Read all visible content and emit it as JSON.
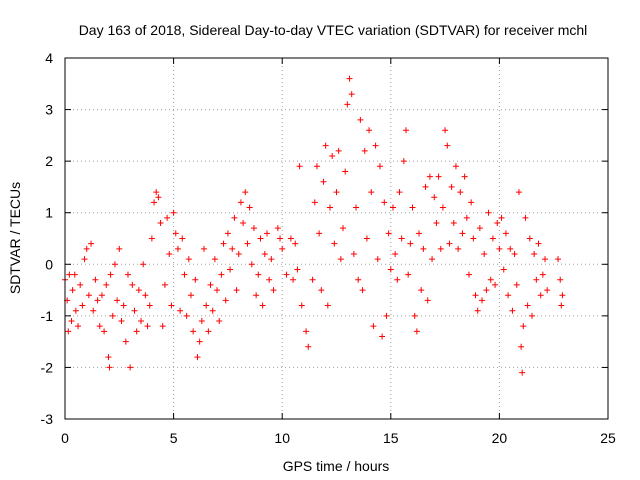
{
  "chart_data": {
    "type": "scatter",
    "title": "Day 163 of 2018, Sidereal Day-to-day VTEC variation (SDTVAR) for receiver mchl",
    "xlabel": "GPS time / hours",
    "ylabel": "SDTVAR / TECUs",
    "xlim": [
      0,
      25
    ],
    "ylim": [
      -3,
      4
    ],
    "xticks": [
      0,
      5,
      10,
      15,
      20,
      25
    ],
    "yticks": [
      -3,
      -2,
      -1,
      0,
      1,
      2,
      3,
      4
    ],
    "xtick_labels": [
      "0",
      "5",
      "10",
      "15",
      "20",
      "25"
    ],
    "ytick_labels": [
      "-3",
      "-2",
      "-1",
      "0",
      "1",
      "2",
      "3",
      "4"
    ],
    "grid": true,
    "marker": "+",
    "color": "#ff0000",
    "series": [
      {
        "name": "SDTVAR",
        "points": [
          [
            0.0,
            -0.3
          ],
          [
            0.1,
            -0.7
          ],
          [
            0.15,
            -1.3
          ],
          [
            0.2,
            -0.2
          ],
          [
            0.3,
            -1.1
          ],
          [
            0.35,
            -0.5
          ],
          [
            0.45,
            -0.2
          ],
          [
            0.5,
            -0.9
          ],
          [
            0.6,
            -1.2
          ],
          [
            0.7,
            -0.4
          ],
          [
            0.8,
            -0.8
          ],
          [
            0.9,
            0.1
          ],
          [
            1.0,
            0.3
          ],
          [
            1.1,
            -0.6
          ],
          [
            1.2,
            0.4
          ],
          [
            1.3,
            -0.9
          ],
          [
            1.4,
            -0.3
          ],
          [
            1.5,
            -0.7
          ],
          [
            1.6,
            -1.2
          ],
          [
            1.7,
            -0.6
          ],
          [
            1.8,
            -1.3
          ],
          [
            1.9,
            -0.4
          ],
          [
            2.0,
            -1.8
          ],
          [
            2.05,
            -2.0
          ],
          [
            2.1,
            -0.2
          ],
          [
            2.2,
            -1.0
          ],
          [
            2.3,
            0.0
          ],
          [
            2.4,
            -0.7
          ],
          [
            2.5,
            0.3
          ],
          [
            2.6,
            -1.1
          ],
          [
            2.7,
            -0.8
          ],
          [
            2.8,
            -1.5
          ],
          [
            2.9,
            -0.2
          ],
          [
            3.0,
            -2.0
          ],
          [
            3.1,
            -0.4
          ],
          [
            3.2,
            -0.9
          ],
          [
            3.3,
            -1.3
          ],
          [
            3.4,
            -0.5
          ],
          [
            3.5,
            -1.1
          ],
          [
            3.6,
            0.0
          ],
          [
            3.7,
            -0.6
          ],
          [
            3.8,
            -1.2
          ],
          [
            3.9,
            -0.8
          ],
          [
            4.0,
            0.5
          ],
          [
            4.1,
            1.2
          ],
          [
            4.2,
            1.4
          ],
          [
            4.3,
            1.3
          ],
          [
            4.4,
            0.8
          ],
          [
            4.5,
            -1.2
          ],
          [
            4.6,
            -0.4
          ],
          [
            4.7,
            0.9
          ],
          [
            4.8,
            0.2
          ],
          [
            4.9,
            -0.8
          ],
          [
            5.0,
            1.0
          ],
          [
            5.1,
            0.6
          ],
          [
            5.2,
            0.3
          ],
          [
            5.3,
            -0.9
          ],
          [
            5.4,
            0.5
          ],
          [
            5.5,
            -0.2
          ],
          [
            5.6,
            -1.0
          ],
          [
            5.7,
            0.1
          ],
          [
            5.8,
            -0.6
          ],
          [
            5.9,
            -1.3
          ],
          [
            6.0,
            -0.3
          ],
          [
            6.1,
            -1.8
          ],
          [
            6.2,
            -1.5
          ],
          [
            6.3,
            -1.1
          ],
          [
            6.4,
            0.3
          ],
          [
            6.5,
            -0.8
          ],
          [
            6.6,
            -1.3
          ],
          [
            6.7,
            -0.4
          ],
          [
            6.8,
            -0.9
          ],
          [
            6.9,
            0.1
          ],
          [
            7.0,
            -0.5
          ],
          [
            7.1,
            -1.1
          ],
          [
            7.2,
            -0.2
          ],
          [
            7.3,
            0.4
          ],
          [
            7.4,
            -0.7
          ],
          [
            7.5,
            0.6
          ],
          [
            7.6,
            -0.1
          ],
          [
            7.7,
            0.3
          ],
          [
            7.8,
            0.9
          ],
          [
            7.9,
            -0.5
          ],
          [
            8.0,
            0.2
          ],
          [
            8.1,
            1.2
          ],
          [
            8.2,
            0.8
          ],
          [
            8.3,
            1.4
          ],
          [
            8.4,
            0.4
          ],
          [
            8.5,
            1.1
          ],
          [
            8.6,
            0.0
          ],
          [
            8.7,
            0.7
          ],
          [
            8.8,
            -0.6
          ],
          [
            8.9,
            -0.2
          ],
          [
            9.0,
            0.5
          ],
          [
            9.1,
            -0.8
          ],
          [
            9.2,
            0.2
          ],
          [
            9.3,
            0.6
          ],
          [
            9.4,
            -0.3
          ],
          [
            9.5,
            0.1
          ],
          [
            9.6,
            -0.5
          ],
          [
            9.8,
            0.7
          ],
          [
            9.9,
            0.5
          ],
          [
            10.0,
            0.3
          ],
          [
            10.2,
            -0.2
          ],
          [
            10.4,
            0.5
          ],
          [
            10.5,
            -0.3
          ],
          [
            10.6,
            0.4
          ],
          [
            10.7,
            -0.1
          ],
          [
            10.8,
            1.9
          ],
          [
            10.9,
            -0.8
          ],
          [
            11.1,
            -1.3
          ],
          [
            11.2,
            -1.6
          ],
          [
            11.4,
            -0.3
          ],
          [
            11.5,
            1.2
          ],
          [
            11.6,
            1.9
          ],
          [
            11.7,
            0.6
          ],
          [
            11.8,
            -0.5
          ],
          [
            11.9,
            1.6
          ],
          [
            12.0,
            2.3
          ],
          [
            12.1,
            -0.8
          ],
          [
            12.2,
            1.1
          ],
          [
            12.3,
            2.1
          ],
          [
            12.4,
            0.4
          ],
          [
            12.5,
            1.4
          ],
          [
            12.6,
            2.2
          ],
          [
            12.7,
            0.1
          ],
          [
            12.8,
            0.7
          ],
          [
            12.9,
            1.8
          ],
          [
            13.0,
            3.1
          ],
          [
            13.1,
            3.6
          ],
          [
            13.2,
            3.3
          ],
          [
            13.3,
            0.2
          ],
          [
            13.4,
            1.1
          ],
          [
            13.5,
            -0.3
          ],
          [
            13.6,
            2.8
          ],
          [
            13.7,
            -0.5
          ],
          [
            13.8,
            2.2
          ],
          [
            13.9,
            0.5
          ],
          [
            14.0,
            2.6
          ],
          [
            14.1,
            1.4
          ],
          [
            14.2,
            -1.2
          ],
          [
            14.3,
            2.3
          ],
          [
            14.4,
            0.1
          ],
          [
            14.5,
            1.9
          ],
          [
            14.6,
            -1.4
          ],
          [
            14.7,
            1.2
          ],
          [
            14.8,
            -1.0
          ],
          [
            14.9,
            0.6
          ],
          [
            15.0,
            -0.1
          ],
          [
            15.1,
            1.1
          ],
          [
            15.2,
            0.2
          ],
          [
            15.3,
            -0.3
          ],
          [
            15.4,
            1.4
          ],
          [
            15.5,
            0.5
          ],
          [
            15.6,
            2.0
          ],
          [
            15.7,
            2.6
          ],
          [
            15.8,
            -0.2
          ],
          [
            15.9,
            0.4
          ],
          [
            16.0,
            1.1
          ],
          [
            16.1,
            -1.0
          ],
          [
            16.2,
            -1.3
          ],
          [
            16.3,
            0.6
          ],
          [
            16.4,
            -0.5
          ],
          [
            16.5,
            0.3
          ],
          [
            16.6,
            1.5
          ],
          [
            16.7,
            -0.7
          ],
          [
            16.8,
            1.7
          ],
          [
            16.9,
            0.1
          ],
          [
            17.0,
            1.3
          ],
          [
            17.1,
            0.8
          ],
          [
            17.2,
            1.7
          ],
          [
            17.3,
            0.3
          ],
          [
            17.4,
            1.1
          ],
          [
            17.5,
            2.6
          ],
          [
            17.6,
            2.3
          ],
          [
            17.7,
            0.4
          ],
          [
            17.8,
            1.5
          ],
          [
            17.9,
            0.8
          ],
          [
            18.0,
            1.9
          ],
          [
            18.1,
            0.3
          ],
          [
            18.2,
            1.4
          ],
          [
            18.3,
            0.6
          ],
          [
            18.4,
            1.7
          ],
          [
            18.5,
            0.9
          ],
          [
            18.6,
            -0.2
          ],
          [
            18.7,
            1.2
          ],
          [
            18.8,
            0.5
          ],
          [
            18.9,
            -0.6
          ],
          [
            19.0,
            -0.9
          ],
          [
            19.1,
            0.7
          ],
          [
            19.2,
            -0.7
          ],
          [
            19.3,
            0.2
          ],
          [
            19.4,
            -0.5
          ],
          [
            19.5,
            1.0
          ],
          [
            19.6,
            -0.3
          ],
          [
            19.7,
            0.5
          ],
          [
            19.8,
            -0.4
          ],
          [
            19.9,
            0.8
          ],
          [
            20.0,
            0.3
          ],
          [
            20.1,
            0.9
          ],
          [
            20.2,
            -0.1
          ],
          [
            20.3,
            0.6
          ],
          [
            20.4,
            -0.6
          ],
          [
            20.5,
            0.3
          ],
          [
            20.6,
            -0.9
          ],
          [
            20.7,
            0.2
          ],
          [
            20.8,
            -0.4
          ],
          [
            20.9,
            1.4
          ],
          [
            21.0,
            -1.6
          ],
          [
            21.05,
            -2.1
          ],
          [
            21.1,
            -1.2
          ],
          [
            21.2,
            0.9
          ],
          [
            21.3,
            -0.8
          ],
          [
            21.4,
            0.5
          ],
          [
            21.5,
            -1.0
          ],
          [
            21.6,
            0.2
          ],
          [
            21.7,
            -0.3
          ],
          [
            21.8,
            0.4
          ],
          [
            21.9,
            -0.6
          ],
          [
            22.0,
            -0.2
          ],
          [
            22.1,
            0.1
          ],
          [
            22.2,
            -0.5
          ],
          [
            22.7,
            0.1
          ],
          [
            22.8,
            -0.3
          ],
          [
            22.85,
            -0.8
          ],
          [
            22.9,
            -0.6
          ]
        ]
      }
    ]
  }
}
